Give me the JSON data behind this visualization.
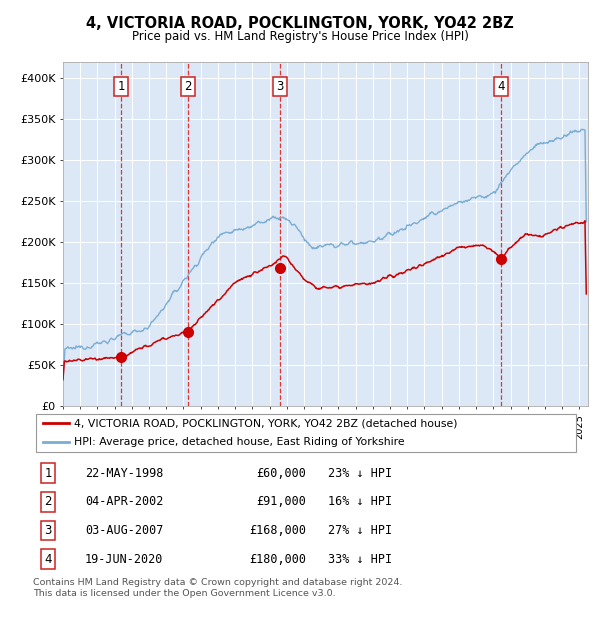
{
  "title1": "4, VICTORIA ROAD, POCKLINGTON, YORK, YO42 2BZ",
  "title2": "Price paid vs. HM Land Registry's House Price Index (HPI)",
  "legend_line1": "4, VICTORIA ROAD, POCKLINGTON, YORK, YO42 2BZ (detached house)",
  "legend_line2": "HPI: Average price, detached house, East Riding of Yorkshire",
  "transactions": [
    {
      "num": 1,
      "date": "22-MAY-1998",
      "price": 60000,
      "hpi_pct": "23% ↓ HPI",
      "year": 1998.38
    },
    {
      "num": 2,
      "date": "04-APR-2002",
      "price": 91000,
      "hpi_pct": "16% ↓ HPI",
      "year": 2002.25
    },
    {
      "num": 3,
      "date": "03-AUG-2007",
      "price": 168000,
      "hpi_pct": "27% ↓ HPI",
      "year": 2007.58
    },
    {
      "num": 4,
      "date": "19-JUN-2020",
      "price": 180000,
      "hpi_pct": "33% ↓ HPI",
      "year": 2020.46
    }
  ],
  "footnote1": "Contains HM Land Registry data © Crown copyright and database right 2024.",
  "footnote2": "This data is licensed under the Open Government Licence v3.0.",
  "red_line_color": "#cc0000",
  "blue_line_color": "#7aadd4",
  "plot_bg_color": "#dce8f5",
  "ylim": [
    0,
    420000
  ],
  "xlim_start": 1995.0,
  "xlim_end": 2025.5,
  "yticks": [
    0,
    50000,
    100000,
    150000,
    200000,
    250000,
    300000,
    350000,
    400000
  ],
  "ylabels": [
    "£0",
    "£50K",
    "£100K",
    "£150K",
    "£200K",
    "£250K",
    "£300K",
    "£350K",
    "£400K"
  ]
}
